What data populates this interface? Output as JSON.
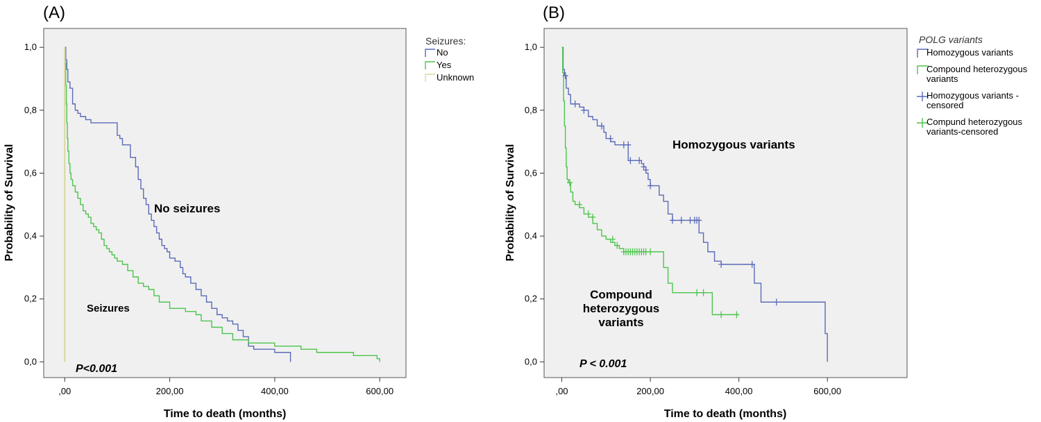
{
  "chart_data": [
    {
      "panel_label": "(A)",
      "type": "line",
      "step": true,
      "xlabel": "Time to death (months)",
      "ylabel": "Probability of Survival",
      "xlim": [
        -40,
        650
      ],
      "ylim": [
        -0.05,
        1.06
      ],
      "x_ticks": [
        0,
        200,
        400,
        600
      ],
      "x_tick_labels": [
        ",00",
        "200,00",
        "400,00",
        "600,00"
      ],
      "y_ticks": [
        0,
        0.2,
        0.4,
        0.6,
        0.8,
        1.0
      ],
      "y_tick_labels": [
        "0,0",
        "0,2",
        "0,4",
        "0,6",
        "0,8",
        "1,0"
      ],
      "grid": false,
      "legend": {
        "title": "Seizures:",
        "position": "right-outside"
      },
      "annotations": [
        {
          "text": "No seizures",
          "x": 150,
          "y": 0.48,
          "size": "large"
        },
        {
          "text": "Seizures",
          "x": 70,
          "y": 0.17,
          "size": "small"
        },
        {
          "text": "P<0.001",
          "x": 10,
          "y": -0.03,
          "style": "pvalue"
        }
      ],
      "series": [
        {
          "name": "No",
          "color": "#5a6ab8",
          "x": [
            0,
            2,
            4,
            6,
            10,
            15,
            20,
            25,
            30,
            40,
            50,
            60,
            100,
            105,
            110,
            125,
            135,
            140,
            145,
            150,
            155,
            160,
            165,
            170,
            175,
            180,
            185,
            190,
            195,
            200,
            210,
            220,
            225,
            230,
            240,
            250,
            260,
            270,
            280,
            290,
            300,
            310,
            320,
            330,
            340,
            350,
            360,
            400,
            430
          ],
          "y": [
            1.0,
            0.96,
            0.93,
            0.89,
            0.87,
            0.82,
            0.8,
            0.79,
            0.78,
            0.77,
            0.76,
            0.76,
            0.72,
            0.71,
            0.69,
            0.65,
            0.62,
            0.58,
            0.55,
            0.52,
            0.5,
            0.47,
            0.45,
            0.43,
            0.41,
            0.39,
            0.37,
            0.36,
            0.35,
            0.33,
            0.32,
            0.3,
            0.28,
            0.27,
            0.25,
            0.23,
            0.21,
            0.19,
            0.17,
            0.15,
            0.14,
            0.13,
            0.12,
            0.1,
            0.08,
            0.05,
            0.04,
            0.03,
            0.0
          ]
        },
        {
          "name": "Yes",
          "color": "#4cc44c",
          "x": [
            0,
            1,
            2,
            3,
            4,
            5,
            6,
            8,
            10,
            12,
            15,
            20,
            25,
            30,
            35,
            40,
            45,
            50,
            55,
            60,
            65,
            70,
            75,
            80,
            85,
            90,
            95,
            100,
            110,
            120,
            130,
            140,
            150,
            160,
            170,
            180,
            200,
            230,
            250,
            260,
            280,
            300,
            320,
            350,
            400,
            450,
            480,
            550,
            595,
            600
          ],
          "y": [
            1.0,
            0.95,
            0.88,
            0.82,
            0.76,
            0.71,
            0.67,
            0.63,
            0.6,
            0.58,
            0.56,
            0.54,
            0.52,
            0.5,
            0.48,
            0.47,
            0.46,
            0.44,
            0.43,
            0.42,
            0.41,
            0.39,
            0.37,
            0.36,
            0.35,
            0.34,
            0.33,
            0.32,
            0.31,
            0.29,
            0.27,
            0.25,
            0.24,
            0.23,
            0.21,
            0.19,
            0.17,
            0.16,
            0.15,
            0.13,
            0.11,
            0.09,
            0.07,
            0.06,
            0.05,
            0.04,
            0.03,
            0.02,
            0.01,
            0.0
          ]
        },
        {
          "name": "Unknown",
          "color": "#d8d8a0",
          "x": [
            0,
            0
          ],
          "y": [
            1.0,
            0.0
          ]
        }
      ]
    },
    {
      "panel_label": "(B)",
      "type": "line",
      "step": true,
      "xlabel": "Time to death (months)",
      "ylabel": "Probability of Survival",
      "xlim": [
        -40,
        780
      ],
      "ylim": [
        -0.05,
        1.06
      ],
      "x_ticks": [
        0,
        200,
        400,
        600
      ],
      "x_tick_labels": [
        ",00",
        "200,00",
        "400,00",
        "600,00"
      ],
      "y_ticks": [
        0,
        0.2,
        0.4,
        0.6,
        0.8,
        1.0
      ],
      "y_tick_labels": [
        "0,0",
        "0,2",
        "0,4",
        "0,6",
        "0,8",
        "1,0"
      ],
      "grid": false,
      "legend": {
        "title": "POLG variants",
        "position": "right-outside",
        "entries": [
          {
            "label_lines": [
              "Homozygous variants"
            ],
            "color": "#5a6ab8",
            "marker": "step"
          },
          {
            "label_lines": [
              "Compound heterozygous",
              "variants"
            ],
            "color": "#4cc44c",
            "marker": "step"
          },
          {
            "label_lines": [
              "Homozygous variants -",
              "censored"
            ],
            "color": "#5a6ab8",
            "marker": "plus"
          },
          {
            "label_lines": [
              "Compund heterozygous",
              "variants-censored"
            ],
            "color": "#4cc44c",
            "marker": "plus"
          }
        ]
      },
      "annotations": [
        {
          "text": "Homozygous variants",
          "x": 230,
          "y": 0.69,
          "size": "large"
        },
        {
          "text": "Compound",
          "x": 105,
          "y": 0.21,
          "size": "large"
        },
        {
          "text": "heterozygous",
          "x": 105,
          "y": 0.17,
          "size": "large"
        },
        {
          "text": "variants",
          "x": 105,
          "y": 0.13,
          "size": "large"
        },
        {
          "text": "P < 0.001",
          "x": 40,
          "y": -0.03,
          "style": "pvalue"
        }
      ],
      "series": [
        {
          "name": "Homozygous variants",
          "color": "#5a6ab8",
          "x": [
            0,
            3,
            6,
            10,
            15,
            20,
            40,
            50,
            60,
            70,
            80,
            95,
            100,
            110,
            120,
            130,
            150,
            180,
            185,
            190,
            195,
            200,
            210,
            220,
            230,
            240,
            250,
            260,
            300,
            310,
            320,
            330,
            345,
            360,
            430,
            435,
            450,
            480,
            590,
            595,
            600
          ],
          "y": [
            1.0,
            0.93,
            0.91,
            0.87,
            0.85,
            0.82,
            0.81,
            0.8,
            0.78,
            0.77,
            0.75,
            0.73,
            0.71,
            0.7,
            0.69,
            0.69,
            0.64,
            0.63,
            0.62,
            0.6,
            0.58,
            0.56,
            0.56,
            0.53,
            0.51,
            0.47,
            0.45,
            0.45,
            0.45,
            0.41,
            0.38,
            0.35,
            0.32,
            0.31,
            0.31,
            0.25,
            0.19,
            0.19,
            0.19,
            0.09,
            0.0
          ]
        },
        {
          "name": "Compound heterozygous variants",
          "color": "#4cc44c",
          "x": [
            0,
            2,
            4,
            6,
            8,
            10,
            12,
            15,
            20,
            25,
            30,
            40,
            50,
            60,
            70,
            80,
            90,
            100,
            110,
            120,
            130,
            140,
            150,
            230,
            240,
            250,
            330,
            340,
            400
          ],
          "y": [
            1.0,
            0.92,
            0.83,
            0.75,
            0.68,
            0.62,
            0.58,
            0.57,
            0.54,
            0.51,
            0.5,
            0.49,
            0.47,
            0.46,
            0.44,
            0.42,
            0.4,
            0.39,
            0.38,
            0.37,
            0.36,
            0.35,
            0.35,
            0.3,
            0.25,
            0.22,
            0.22,
            0.15,
            0.15
          ]
        },
        {
          "name": "Homozygous variants - censored",
          "color": "#5a6ab8",
          "marker": "plus",
          "x": [
            8,
            30,
            50,
            90,
            110,
            140,
            150,
            155,
            175,
            185,
            190,
            200,
            250,
            270,
            290,
            300,
            305,
            310,
            360,
            430,
            485
          ],
          "y": [
            0.91,
            0.82,
            0.8,
            0.75,
            0.71,
            0.69,
            0.69,
            0.64,
            0.64,
            0.62,
            0.61,
            0.56,
            0.45,
            0.45,
            0.45,
            0.45,
            0.45,
            0.45,
            0.31,
            0.31,
            0.19
          ]
        },
        {
          "name": "Compund heterozygous variants-censored",
          "color": "#4cc44c",
          "marker": "plus",
          "x": [
            18,
            40,
            60,
            70,
            115,
            125,
            140,
            145,
            150,
            155,
            160,
            165,
            170,
            175,
            180,
            185,
            190,
            200,
            305,
            320,
            360,
            395
          ],
          "y": [
            0.57,
            0.5,
            0.47,
            0.46,
            0.39,
            0.37,
            0.35,
            0.35,
            0.35,
            0.35,
            0.35,
            0.35,
            0.35,
            0.35,
            0.35,
            0.35,
            0.35,
            0.35,
            0.22,
            0.22,
            0.15,
            0.15
          ]
        }
      ]
    }
  ]
}
